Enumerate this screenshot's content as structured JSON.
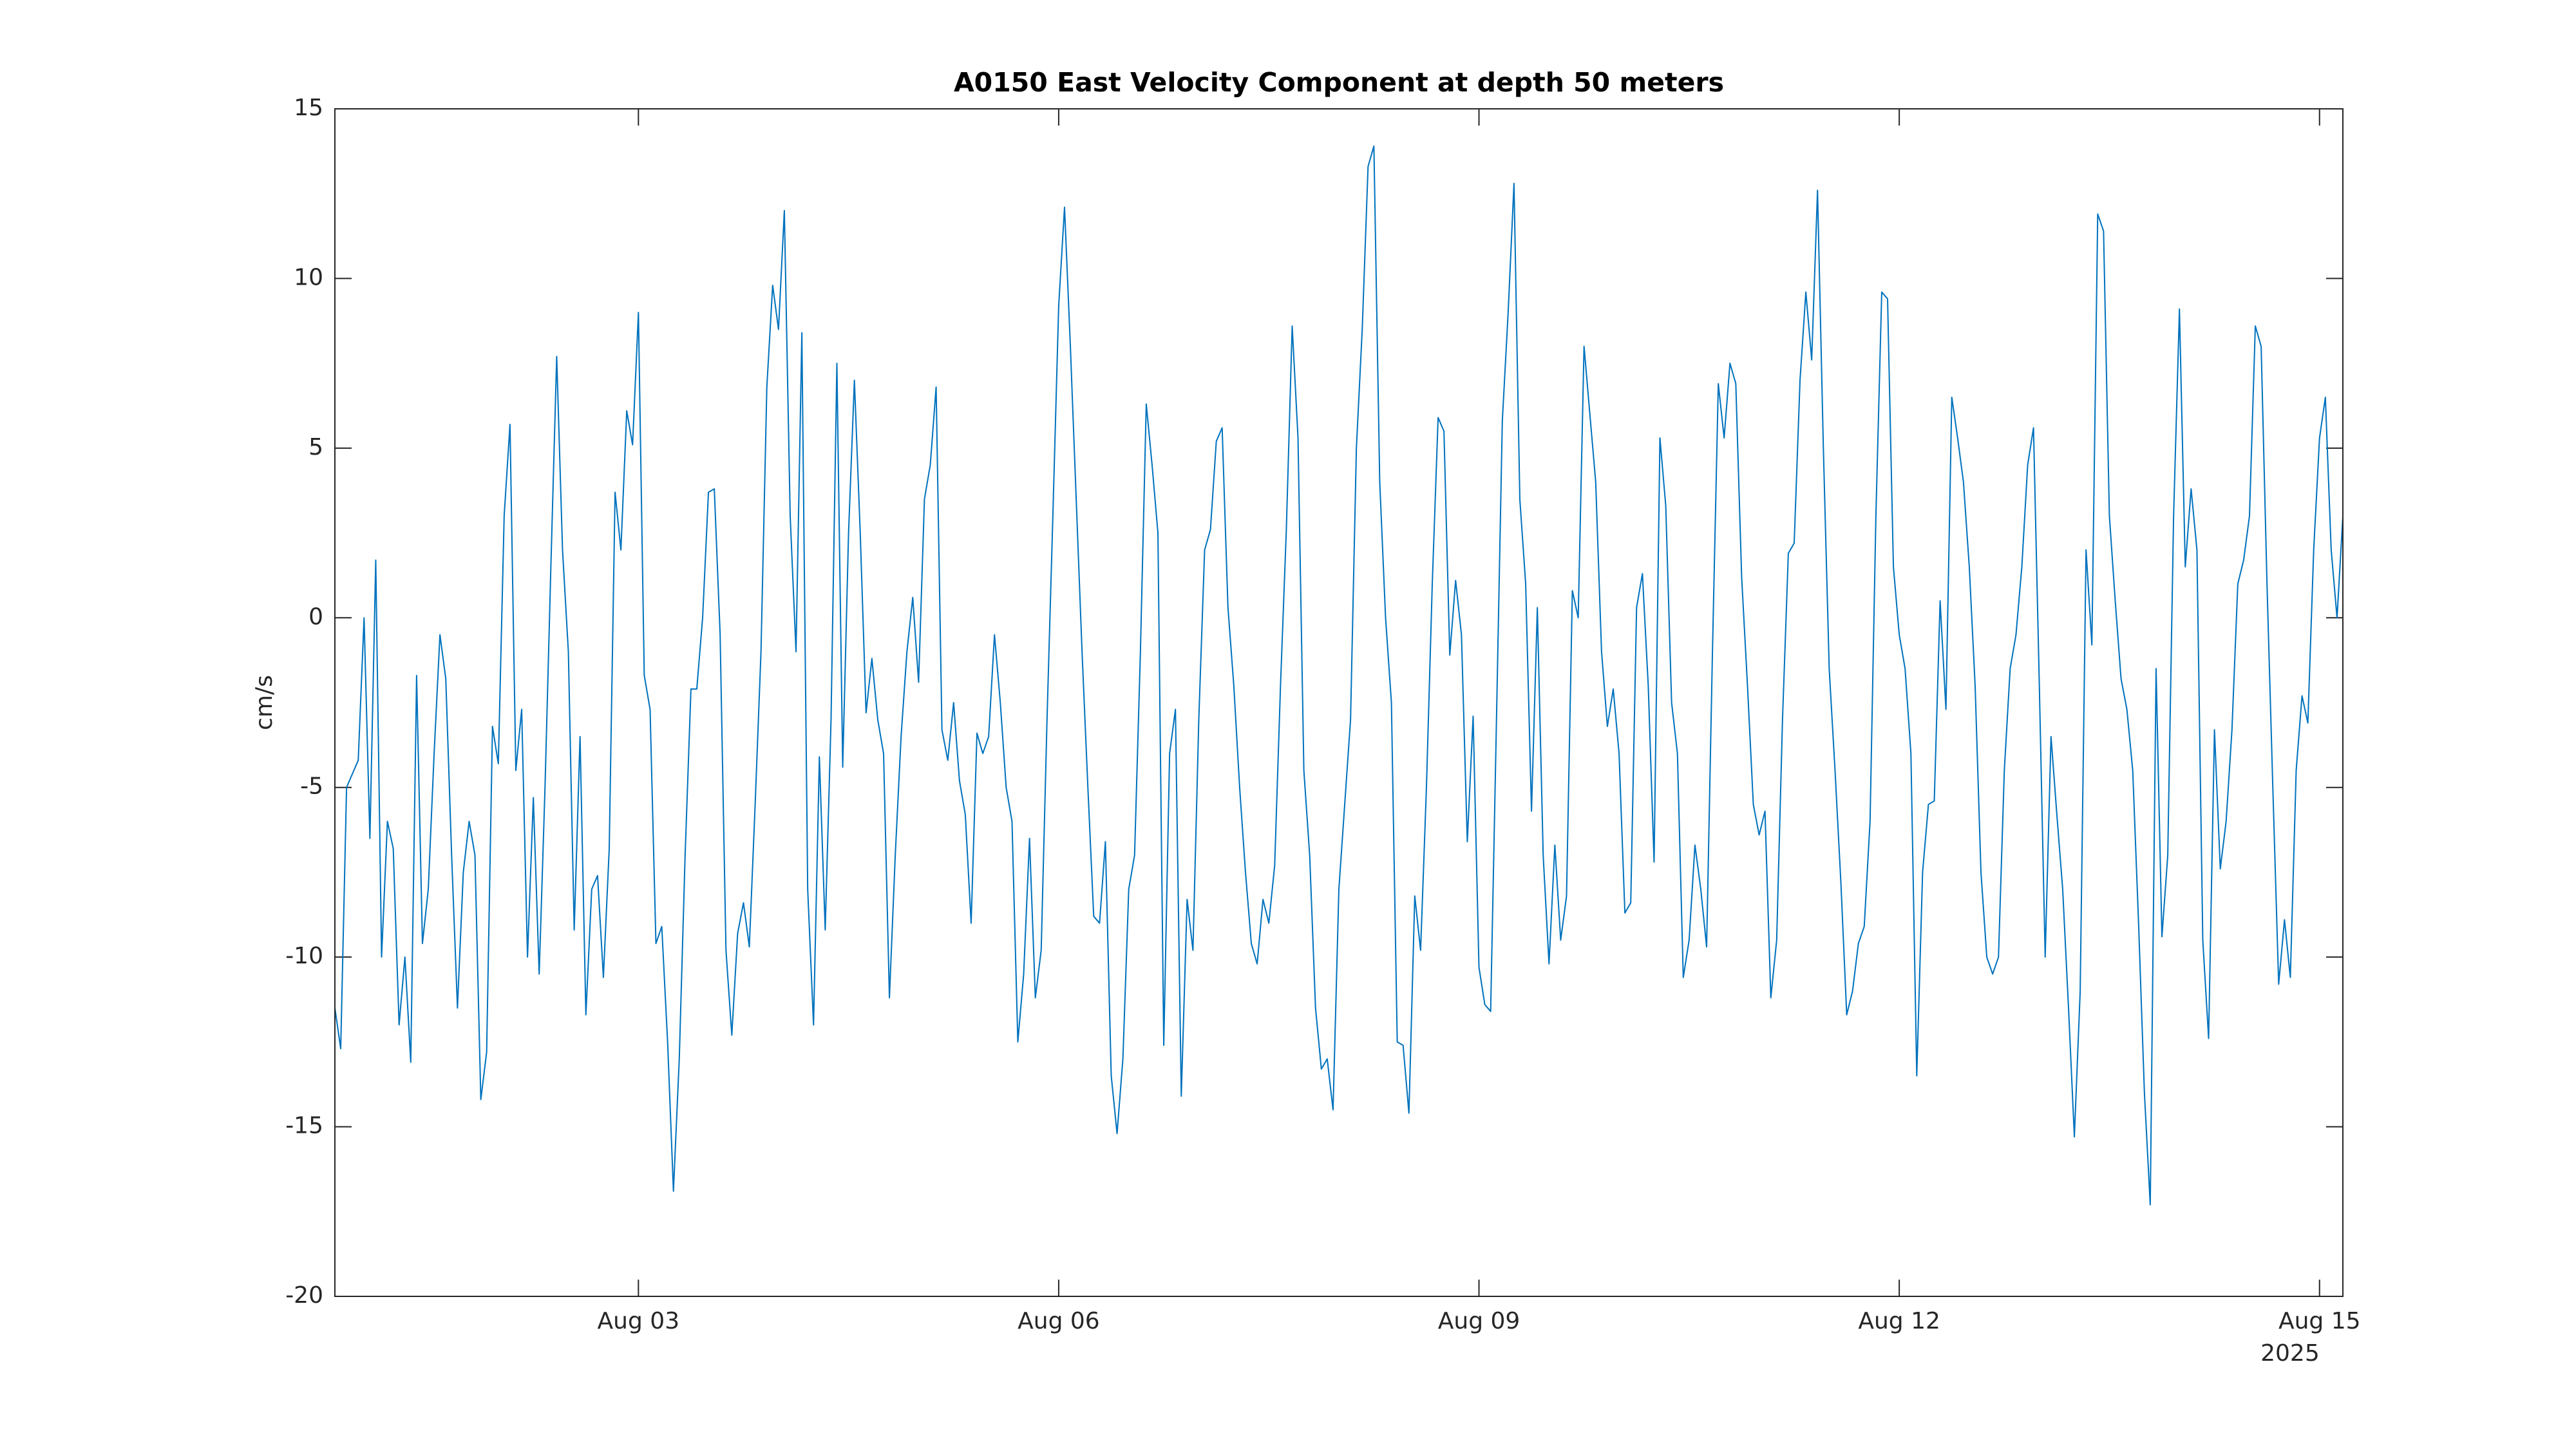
{
  "chart_data": {
    "type": "line",
    "title": "A0150 East Velocity Component at depth 50 meters",
    "ylabel": "cm/s",
    "x_axis_year": "2025",
    "color": "#0072bd",
    "ylim": [
      -20,
      15
    ],
    "yticks": [
      -20,
      -15,
      -10,
      -5,
      0,
      5,
      10,
      15
    ],
    "xlim": [
      "2025-07-31T20:00",
      "2025-08-15T04:00"
    ],
    "xticks": [
      {
        "value": "2025-08-03T00:00",
        "label": "Aug 03"
      },
      {
        "value": "2025-08-06T00:00",
        "label": "Aug 06"
      },
      {
        "value": "2025-08-09T00:00",
        "label": "Aug 09"
      },
      {
        "value": "2025-08-12T00:00",
        "label": "Aug 12"
      },
      {
        "value": "2025-08-15T00:00",
        "label": "Aug 15"
      }
    ],
    "x": [
      "2025-07-31T20:00",
      "2025-07-31T21:00",
      "2025-07-31T22:00",
      "2025-07-31T23:00",
      "2025-08-01T00:00",
      "2025-08-01T01:00",
      "2025-08-01T02:00",
      "2025-08-01T03:00",
      "2025-08-01T04:00",
      "2025-08-01T05:00",
      "2025-08-01T06:00",
      "2025-08-01T07:00",
      "2025-08-01T08:00",
      "2025-08-01T09:00",
      "2025-08-01T10:00",
      "2025-08-01T11:00",
      "2025-08-01T12:00",
      "2025-08-01T13:00",
      "2025-08-01T14:00",
      "2025-08-01T15:00",
      "2025-08-01T16:00",
      "2025-08-01T17:00",
      "2025-08-01T18:00",
      "2025-08-01T19:00",
      "2025-08-01T20:00",
      "2025-08-01T21:00",
      "2025-08-01T22:00",
      "2025-08-01T23:00",
      "2025-08-02T00:00",
      "2025-08-02T01:00",
      "2025-08-02T02:00",
      "2025-08-02T03:00",
      "2025-08-02T04:00",
      "2025-08-02T05:00",
      "2025-08-02T06:00",
      "2025-08-02T07:00",
      "2025-08-02T08:00",
      "2025-08-02T09:00",
      "2025-08-02T10:00",
      "2025-08-02T11:00",
      "2025-08-02T12:00",
      "2025-08-02T13:00",
      "2025-08-02T14:00",
      "2025-08-02T15:00",
      "2025-08-02T16:00",
      "2025-08-02T17:00",
      "2025-08-02T18:00",
      "2025-08-02T19:00",
      "2025-08-02T20:00",
      "2025-08-02T21:00",
      "2025-08-02T22:00",
      "2025-08-02T23:00",
      "2025-08-03T00:00",
      "2025-08-03T01:00",
      "2025-08-03T02:00",
      "2025-08-03T03:00",
      "2025-08-03T04:00",
      "2025-08-03T05:00",
      "2025-08-03T06:00",
      "2025-08-03T07:00",
      "2025-08-03T08:00",
      "2025-08-03T09:00",
      "2025-08-03T10:00",
      "2025-08-03T11:00",
      "2025-08-03T12:00",
      "2025-08-03T13:00",
      "2025-08-03T14:00",
      "2025-08-03T15:00",
      "2025-08-03T16:00",
      "2025-08-03T17:00",
      "2025-08-03T18:00",
      "2025-08-03T19:00",
      "2025-08-03T20:00",
      "2025-08-03T21:00",
      "2025-08-03T22:00",
      "2025-08-03T23:00",
      "2025-08-04T00:00",
      "2025-08-04T01:00",
      "2025-08-04T02:00",
      "2025-08-04T03:00",
      "2025-08-04T04:00",
      "2025-08-04T05:00",
      "2025-08-04T06:00",
      "2025-08-04T07:00",
      "2025-08-04T08:00",
      "2025-08-04T09:00",
      "2025-08-04T10:00",
      "2025-08-04T11:00",
      "2025-08-04T12:00",
      "2025-08-04T13:00",
      "2025-08-04T14:00",
      "2025-08-04T15:00",
      "2025-08-04T16:00",
      "2025-08-04T17:00",
      "2025-08-04T18:00",
      "2025-08-04T19:00",
      "2025-08-04T20:00",
      "2025-08-04T21:00",
      "2025-08-04T22:00",
      "2025-08-04T23:00",
      "2025-08-05T00:00",
      "2025-08-05T01:00",
      "2025-08-05T02:00",
      "2025-08-05T03:00",
      "2025-08-05T04:00",
      "2025-08-05T05:00",
      "2025-08-05T06:00",
      "2025-08-05T07:00",
      "2025-08-05T08:00",
      "2025-08-05T09:00",
      "2025-08-05T10:00",
      "2025-08-05T11:00",
      "2025-08-05T12:00",
      "2025-08-05T13:00",
      "2025-08-05T14:00",
      "2025-08-05T15:00",
      "2025-08-05T16:00",
      "2025-08-05T17:00",
      "2025-08-05T18:00",
      "2025-08-05T19:00",
      "2025-08-05T20:00",
      "2025-08-05T21:00",
      "2025-08-05T22:00",
      "2025-08-05T23:00",
      "2025-08-06T00:00",
      "2025-08-06T01:00",
      "2025-08-06T02:00",
      "2025-08-06T03:00",
      "2025-08-06T04:00",
      "2025-08-06T05:00",
      "2025-08-06T06:00",
      "2025-08-06T07:00",
      "2025-08-06T08:00",
      "2025-08-06T09:00",
      "2025-08-06T10:00",
      "2025-08-06T11:00",
      "2025-08-06T12:00",
      "2025-08-06T13:00",
      "2025-08-06T14:00",
      "2025-08-06T15:00",
      "2025-08-06T16:00",
      "2025-08-06T17:00",
      "2025-08-06T18:00",
      "2025-08-06T19:00",
      "2025-08-06T20:00",
      "2025-08-06T21:00",
      "2025-08-06T22:00",
      "2025-08-06T23:00",
      "2025-08-07T00:00",
      "2025-08-07T01:00",
      "2025-08-07T02:00",
      "2025-08-07T03:00",
      "2025-08-07T04:00",
      "2025-08-07T05:00",
      "2025-08-07T06:00",
      "2025-08-07T07:00",
      "2025-08-07T08:00",
      "2025-08-07T09:00",
      "2025-08-07T10:00",
      "2025-08-07T11:00",
      "2025-08-07T12:00",
      "2025-08-07T13:00",
      "2025-08-07T14:00",
      "2025-08-07T15:00",
      "2025-08-07T16:00",
      "2025-08-07T17:00",
      "2025-08-07T18:00",
      "2025-08-07T19:00",
      "2025-08-07T20:00",
      "2025-08-07T21:00",
      "2025-08-07T22:00",
      "2025-08-07T23:00",
      "2025-08-08T00:00",
      "2025-08-08T01:00",
      "2025-08-08T02:00",
      "2025-08-08T03:00",
      "2025-08-08T04:00",
      "2025-08-08T05:00",
      "2025-08-08T06:00",
      "2025-08-08T07:00",
      "2025-08-08T08:00",
      "2025-08-08T09:00",
      "2025-08-08T10:00",
      "2025-08-08T11:00",
      "2025-08-08T12:00",
      "2025-08-08T13:00",
      "2025-08-08T14:00",
      "2025-08-08T15:00",
      "2025-08-08T16:00",
      "2025-08-08T17:00",
      "2025-08-08T18:00",
      "2025-08-08T19:00",
      "2025-08-08T20:00",
      "2025-08-08T21:00",
      "2025-08-08T22:00",
      "2025-08-08T23:00",
      "2025-08-09T00:00",
      "2025-08-09T01:00",
      "2025-08-09T02:00",
      "2025-08-09T03:00",
      "2025-08-09T04:00",
      "2025-08-09T05:00",
      "2025-08-09T06:00",
      "2025-08-09T07:00",
      "2025-08-09T08:00",
      "2025-08-09T09:00",
      "2025-08-09T10:00",
      "2025-08-09T11:00",
      "2025-08-09T12:00",
      "2025-08-09T13:00",
      "2025-08-09T14:00",
      "2025-08-09T15:00",
      "2025-08-09T16:00",
      "2025-08-09T17:00",
      "2025-08-09T18:00",
      "2025-08-09T19:00",
      "2025-08-09T20:00",
      "2025-08-09T21:00",
      "2025-08-09T22:00",
      "2025-08-09T23:00",
      "2025-08-10T00:00",
      "2025-08-10T01:00",
      "2025-08-10T02:00",
      "2025-08-10T03:00",
      "2025-08-10T04:00",
      "2025-08-10T05:00",
      "2025-08-10T06:00",
      "2025-08-10T07:00",
      "2025-08-10T08:00",
      "2025-08-10T09:00",
      "2025-08-10T10:00",
      "2025-08-10T11:00",
      "2025-08-10T12:00",
      "2025-08-10T13:00",
      "2025-08-10T14:00",
      "2025-08-10T15:00",
      "2025-08-10T16:00",
      "2025-08-10T17:00",
      "2025-08-10T18:00",
      "2025-08-10T19:00",
      "2025-08-10T20:00",
      "2025-08-10T21:00",
      "2025-08-10T22:00",
      "2025-08-10T23:00",
      "2025-08-11T00:00",
      "2025-08-11T01:00",
      "2025-08-11T02:00",
      "2025-08-11T03:00",
      "2025-08-11T04:00",
      "2025-08-11T05:00",
      "2025-08-11T06:00",
      "2025-08-11T07:00",
      "2025-08-11T08:00",
      "2025-08-11T09:00",
      "2025-08-11T10:00",
      "2025-08-11T11:00",
      "2025-08-11T12:00",
      "2025-08-11T13:00",
      "2025-08-11T14:00",
      "2025-08-11T15:00",
      "2025-08-11T16:00",
      "2025-08-11T17:00",
      "2025-08-11T18:00",
      "2025-08-11T19:00",
      "2025-08-11T20:00",
      "2025-08-11T21:00",
      "2025-08-11T22:00",
      "2025-08-11T23:00",
      "2025-08-12T00:00",
      "2025-08-12T01:00",
      "2025-08-12T02:00",
      "2025-08-12T03:00",
      "2025-08-12T04:00",
      "2025-08-12T05:00",
      "2025-08-12T06:00",
      "2025-08-12T07:00",
      "2025-08-12T08:00",
      "2025-08-12T09:00",
      "2025-08-12T10:00",
      "2025-08-12T11:00",
      "2025-08-12T12:00",
      "2025-08-12T13:00",
      "2025-08-12T14:00",
      "2025-08-12T15:00",
      "2025-08-12T16:00",
      "2025-08-12T17:00",
      "2025-08-12T18:00",
      "2025-08-12T19:00",
      "2025-08-12T20:00",
      "2025-08-12T21:00",
      "2025-08-12T22:00",
      "2025-08-12T23:00",
      "2025-08-13T00:00",
      "2025-08-13T01:00",
      "2025-08-13T02:00",
      "2025-08-13T03:00",
      "2025-08-13T04:00",
      "2025-08-13T05:00",
      "2025-08-13T06:00",
      "2025-08-13T07:00",
      "2025-08-13T08:00",
      "2025-08-13T09:00",
      "2025-08-13T10:00",
      "2025-08-13T11:00",
      "2025-08-13T12:00",
      "2025-08-13T13:00",
      "2025-08-13T14:00",
      "2025-08-13T15:00",
      "2025-08-13T16:00",
      "2025-08-13T17:00",
      "2025-08-13T18:00",
      "2025-08-13T19:00",
      "2025-08-13T20:00",
      "2025-08-13T21:00",
      "2025-08-13T22:00",
      "2025-08-13T23:00",
      "2025-08-14T00:00",
      "2025-08-14T01:00",
      "2025-08-14T02:00",
      "2025-08-14T03:00",
      "2025-08-14T04:00",
      "2025-08-14T05:00",
      "2025-08-14T06:00",
      "2025-08-14T07:00",
      "2025-08-14T08:00",
      "2025-08-14T09:00",
      "2025-08-14T10:00",
      "2025-08-14T11:00",
      "2025-08-14T12:00",
      "2025-08-14T13:00",
      "2025-08-14T14:00",
      "2025-08-14T15:00",
      "2025-08-14T16:00",
      "2025-08-14T17:00",
      "2025-08-14T18:00",
      "2025-08-14T19:00",
      "2025-08-14T20:00",
      "2025-08-14T21:00",
      "2025-08-14T22:00",
      "2025-08-14T23:00",
      "2025-08-15T00:00",
      "2025-08-15T01:00",
      "2025-08-15T02:00",
      "2025-08-15T03:00",
      "2025-08-15T04:00"
    ],
    "values": [
      -11.5,
      -12.7,
      -5,
      -4.6,
      -4.2,
      0,
      -6.5,
      1.7,
      -10,
      -6,
      -6.8,
      -12,
      -10,
      -13.1,
      -1.7,
      -9.6,
      -8,
      -4,
      -0.5,
      -1.8,
      -7,
      -11.5,
      -7.5,
      -6,
      -7,
      -14.2,
      -12.8,
      -3.2,
      -4.3,
      3,
      5.7,
      -4.5,
      -2.7,
      -10,
      -5.3,
      -10.5,
      -5,
      1.5,
      7.7,
      2,
      -1,
      -9.2,
      -3.5,
      -11.7,
      -8,
      -7.6,
      -10.6,
      -6.8,
      3.7,
      2,
      6.1,
      5.1,
      9,
      -1.7,
      -2.7,
      -9.6,
      -9.1,
      -12.5,
      -16.9,
      -13,
      -7,
      -2.1,
      -2.1,
      0,
      3.7,
      3.8,
      -0.5,
      -9.8,
      -12.3,
      -9.3,
      -8.4,
      -9.7,
      -5.5,
      -1,
      6.8,
      9.8,
      8.5,
      12,
      3,
      -1,
      8.4,
      -8,
      -12,
      -4.1,
      -9.2,
      -3,
      7.5,
      -4.4,
      2.5,
      7,
      2.5,
      -2.8,
      -1.2,
      -3,
      -4,
      -11.2,
      -7,
      -3.5,
      -1,
      0.6,
      -1.9,
      3.5,
      4.5,
      6.8,
      -3.3,
      -4.2,
      -2.5,
      -4.8,
      -5.8,
      -9,
      -3.4,
      -4,
      -3.5,
      -0.5,
      -2.5,
      -5,
      -6,
      -12.5,
      -10.5,
      -6.5,
      -11.2,
      -9.8,
      -3,
      3,
      9.2,
      12.1,
      8,
      3.5,
      -1,
      -5,
      -8.8,
      -9,
      -6.6,
      -13.5,
      -15.2,
      -13,
      -8,
      -7,
      -1,
      6.3,
      4.5,
      2.5,
      -12.6,
      -4,
      -2.7,
      -14.1,
      -8.3,
      -9.8,
      -3,
      2,
      2.6,
      5.2,
      5.6,
      0.3,
      -2,
      -5,
      -7.5,
      -9.6,
      -10.2,
      -8.3,
      -9,
      -7.3,
      -2,
      2.6,
      8.6,
      5.3,
      -4.5,
      -7,
      -11.5,
      -13.3,
      -13,
      -14.5,
      -8,
      -5.5,
      -3,
      5,
      8.5,
      13.3,
      13.9,
      4,
      0,
      -2.5,
      -12.5,
      -12.6,
      -14.6,
      -8.2,
      -9.8,
      -5,
      1,
      5.9,
      5.5,
      -1.1,
      1.1,
      -0.5,
      -6.6,
      -2.9,
      -10.3,
      -11.4,
      -11.6,
      -3,
      5.8,
      9,
      12.8,
      3.5,
      1,
      -5.7,
      0.3,
      -7,
      -10.2,
      -6.7,
      -9.5,
      -8.2,
      0.8,
      0,
      8,
      6,
      4,
      -1,
      -3.2,
      -2.1,
      -4,
      -8.7,
      -8.4,
      0.3,
      1.3,
      -2,
      -7.2,
      5.3,
      3.3,
      -2.5,
      -4,
      -10.6,
      -9.5,
      -6.7,
      -8,
      -9.7,
      -1,
      6.9,
      5.3,
      7.5,
      6.9,
      1.2,
      -2,
      -5.5,
      -6.4,
      -5.7,
      -11.2,
      -9.5,
      -3,
      1.9,
      2.2,
      7,
      9.6,
      7.6,
      12.6,
      5,
      -1.5,
      -4.5,
      -7.8,
      -11.7,
      -11,
      -9.6,
      -9.1,
      -6,
      3,
      9.6,
      9.4,
      1.5,
      -0.5,
      -1.5,
      -4,
      -13.5,
      -7.5,
      -5.5,
      -5.4,
      0.5,
      -2.7,
      6.5,
      5.3,
      4,
      1.5,
      -2,
      -7.5,
      -10,
      -10.5,
      -10,
      -4.5,
      -1.5,
      -0.5,
      1.5,
      4.5,
      5.6,
      -2,
      -10,
      -3.5,
      -5.8,
      -8,
      -11.5,
      -15.3,
      -11,
      2,
      -0.8,
      11.9,
      11.4,
      3,
      0.5,
      -1.8,
      -2.7,
      -4.5,
      -9,
      -14,
      -17.3,
      -1.5,
      -9.4,
      -7,
      3,
      9.1,
      1.5,
      3.8,
      2,
      -9.5,
      -12.4,
      -3.3,
      -7.4,
      -6,
      -3.3,
      1,
      1.7,
      3,
      8.6,
      8,
      1,
      -5,
      -10.8,
      -8.9,
      -10.6,
      -4.5,
      -2.3,
      -3.1,
      2,
      5.3,
      6.5,
      2,
      0,
      3
    ]
  }
}
